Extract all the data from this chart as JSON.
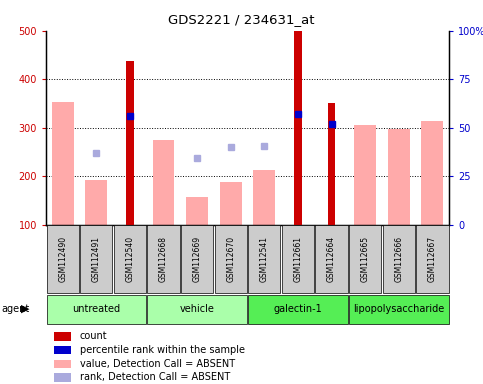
{
  "title": "GDS2221 / 234631_at",
  "samples": [
    "GSM112490",
    "GSM112491",
    "GSM112540",
    "GSM112668",
    "GSM112669",
    "GSM112670",
    "GSM112541",
    "GSM112661",
    "GSM112664",
    "GSM112665",
    "GSM112666",
    "GSM112667"
  ],
  "group_boundaries": [
    {
      "start": 0,
      "end": 2,
      "label": "untreated",
      "color": "#aaffaa"
    },
    {
      "start": 3,
      "end": 5,
      "label": "vehicle",
      "color": "#aaffaa"
    },
    {
      "start": 6,
      "end": 8,
      "label": "galectin-1",
      "color": "#55ee55"
    },
    {
      "start": 9,
      "end": 11,
      "label": "lipopolysaccharide",
      "color": "#55ee55"
    }
  ],
  "count": [
    null,
    null,
    437,
    null,
    null,
    null,
    null,
    500,
    350,
    null,
    null,
    null
  ],
  "percentile_rank": [
    null,
    null,
    325,
    null,
    null,
    null,
    null,
    328,
    308,
    null,
    null,
    null
  ],
  "value_absent": [
    353,
    192,
    null,
    275,
    158,
    188,
    212,
    null,
    null,
    305,
    298,
    314
  ],
  "rank_absent": [
    null,
    248,
    null,
    null,
    237,
    260,
    262,
    null,
    null,
    null,
    null,
    null
  ],
  "ylim_left": [
    100,
    500
  ],
  "ylim_right": [
    0,
    100
  ],
  "yticks_left": [
    100,
    200,
    300,
    400,
    500
  ],
  "yticks_right": [
    0,
    25,
    50,
    75,
    100
  ],
  "ytick_labels_right": [
    "0",
    "25",
    "50",
    "75",
    "100%"
  ],
  "left_color": "#cc0000",
  "right_color": "#0000cc",
  "bar_count_color": "#cc0000",
  "bar_value_absent_color": "#ffaaaa",
  "dot_percentile_color": "#0000cc",
  "dot_rank_absent_color": "#aaaadd",
  "grid_color": "#000000",
  "figsize": [
    4.83,
    3.84
  ],
  "dpi": 100,
  "legend_items": [
    {
      "color": "#cc0000",
      "label": "count"
    },
    {
      "color": "#0000cc",
      "label": "percentile rank within the sample"
    },
    {
      "color": "#ffaaaa",
      "label": "value, Detection Call = ABSENT"
    },
    {
      "color": "#aaaadd",
      "label": "rank, Detection Call = ABSENT"
    }
  ]
}
